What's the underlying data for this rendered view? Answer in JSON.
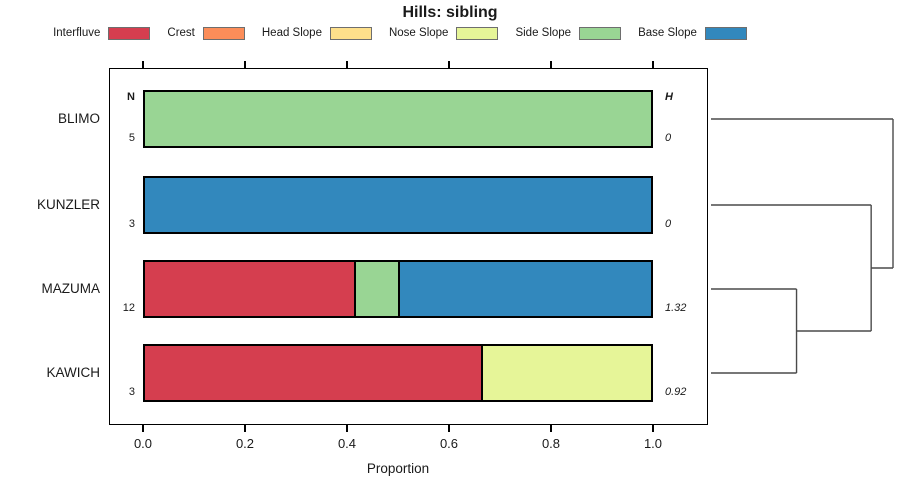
{
  "chart_data": {
    "type": "bar",
    "orientation": "horizontal-stacked",
    "title": "Hills: sibling",
    "xlabel": "Proportion",
    "xlim": [
      0,
      1
    ],
    "xticks": [
      {
        "value": 0.0,
        "label": "0.0"
      },
      {
        "value": 0.2,
        "label": "0.2"
      },
      {
        "value": 0.4,
        "label": "0.4"
      },
      {
        "value": 0.6,
        "label": "0.6"
      },
      {
        "value": 0.8,
        "label": "0.8"
      },
      {
        "value": 1.0,
        "label": "1.0"
      }
    ],
    "legend_position": "top",
    "grid": false,
    "classes": [
      {
        "label": "Interfluve",
        "color": "#D53E4F"
      },
      {
        "label": "Crest",
        "color": "#FC8D59"
      },
      {
        "label": "Head Slope",
        "color": "#FEE08B"
      },
      {
        "label": "Nose Slope",
        "color": "#E6F598"
      },
      {
        "label": "Side Slope",
        "color": "#99D594"
      },
      {
        "label": "Base Slope",
        "color": "#3288BD"
      }
    ],
    "n_header": "N",
    "h_header": "H",
    "rows": [
      {
        "name": "BLIMO",
        "n": "5",
        "h": "0",
        "segments": [
          {
            "class": "Side Slope",
            "proportion": 1.0
          }
        ]
      },
      {
        "name": "KUNZLER",
        "n": "3",
        "h": "0",
        "segments": [
          {
            "class": "Base Slope",
            "proportion": 1.0
          }
        ]
      },
      {
        "name": "MAZUMA",
        "n": "12",
        "h": "1.32",
        "segments": [
          {
            "class": "Interfluve",
            "proportion": 0.4167
          },
          {
            "class": "Side Slope",
            "proportion": 0.0833
          },
          {
            "class": "Base Slope",
            "proportion": 0.5
          }
        ]
      },
      {
        "name": "KAWICH",
        "n": "3",
        "h": "0.92",
        "segments": [
          {
            "class": "Interfluve",
            "proportion": 0.6667
          },
          {
            "class": "Nose Slope",
            "proportion": 0.3333
          }
        ]
      }
    ],
    "dendrogram": {
      "position": "right",
      "leaves": [
        "BLIMO",
        "KUNZLER",
        "MAZUMA",
        "KAWICH"
      ],
      "merges": [
        {
          "id": "M0",
          "children": [
            "MAZUMA",
            "KAWICH"
          ],
          "height": 0.47
        },
        {
          "id": "M1",
          "children": [
            "KUNZLER",
            "M0"
          ],
          "height": 0.88
        },
        {
          "id": "M2",
          "children": [
            "BLIMO",
            "M1"
          ],
          "height": 1.0
        }
      ],
      "line_color": "#4a4a4a"
    }
  }
}
